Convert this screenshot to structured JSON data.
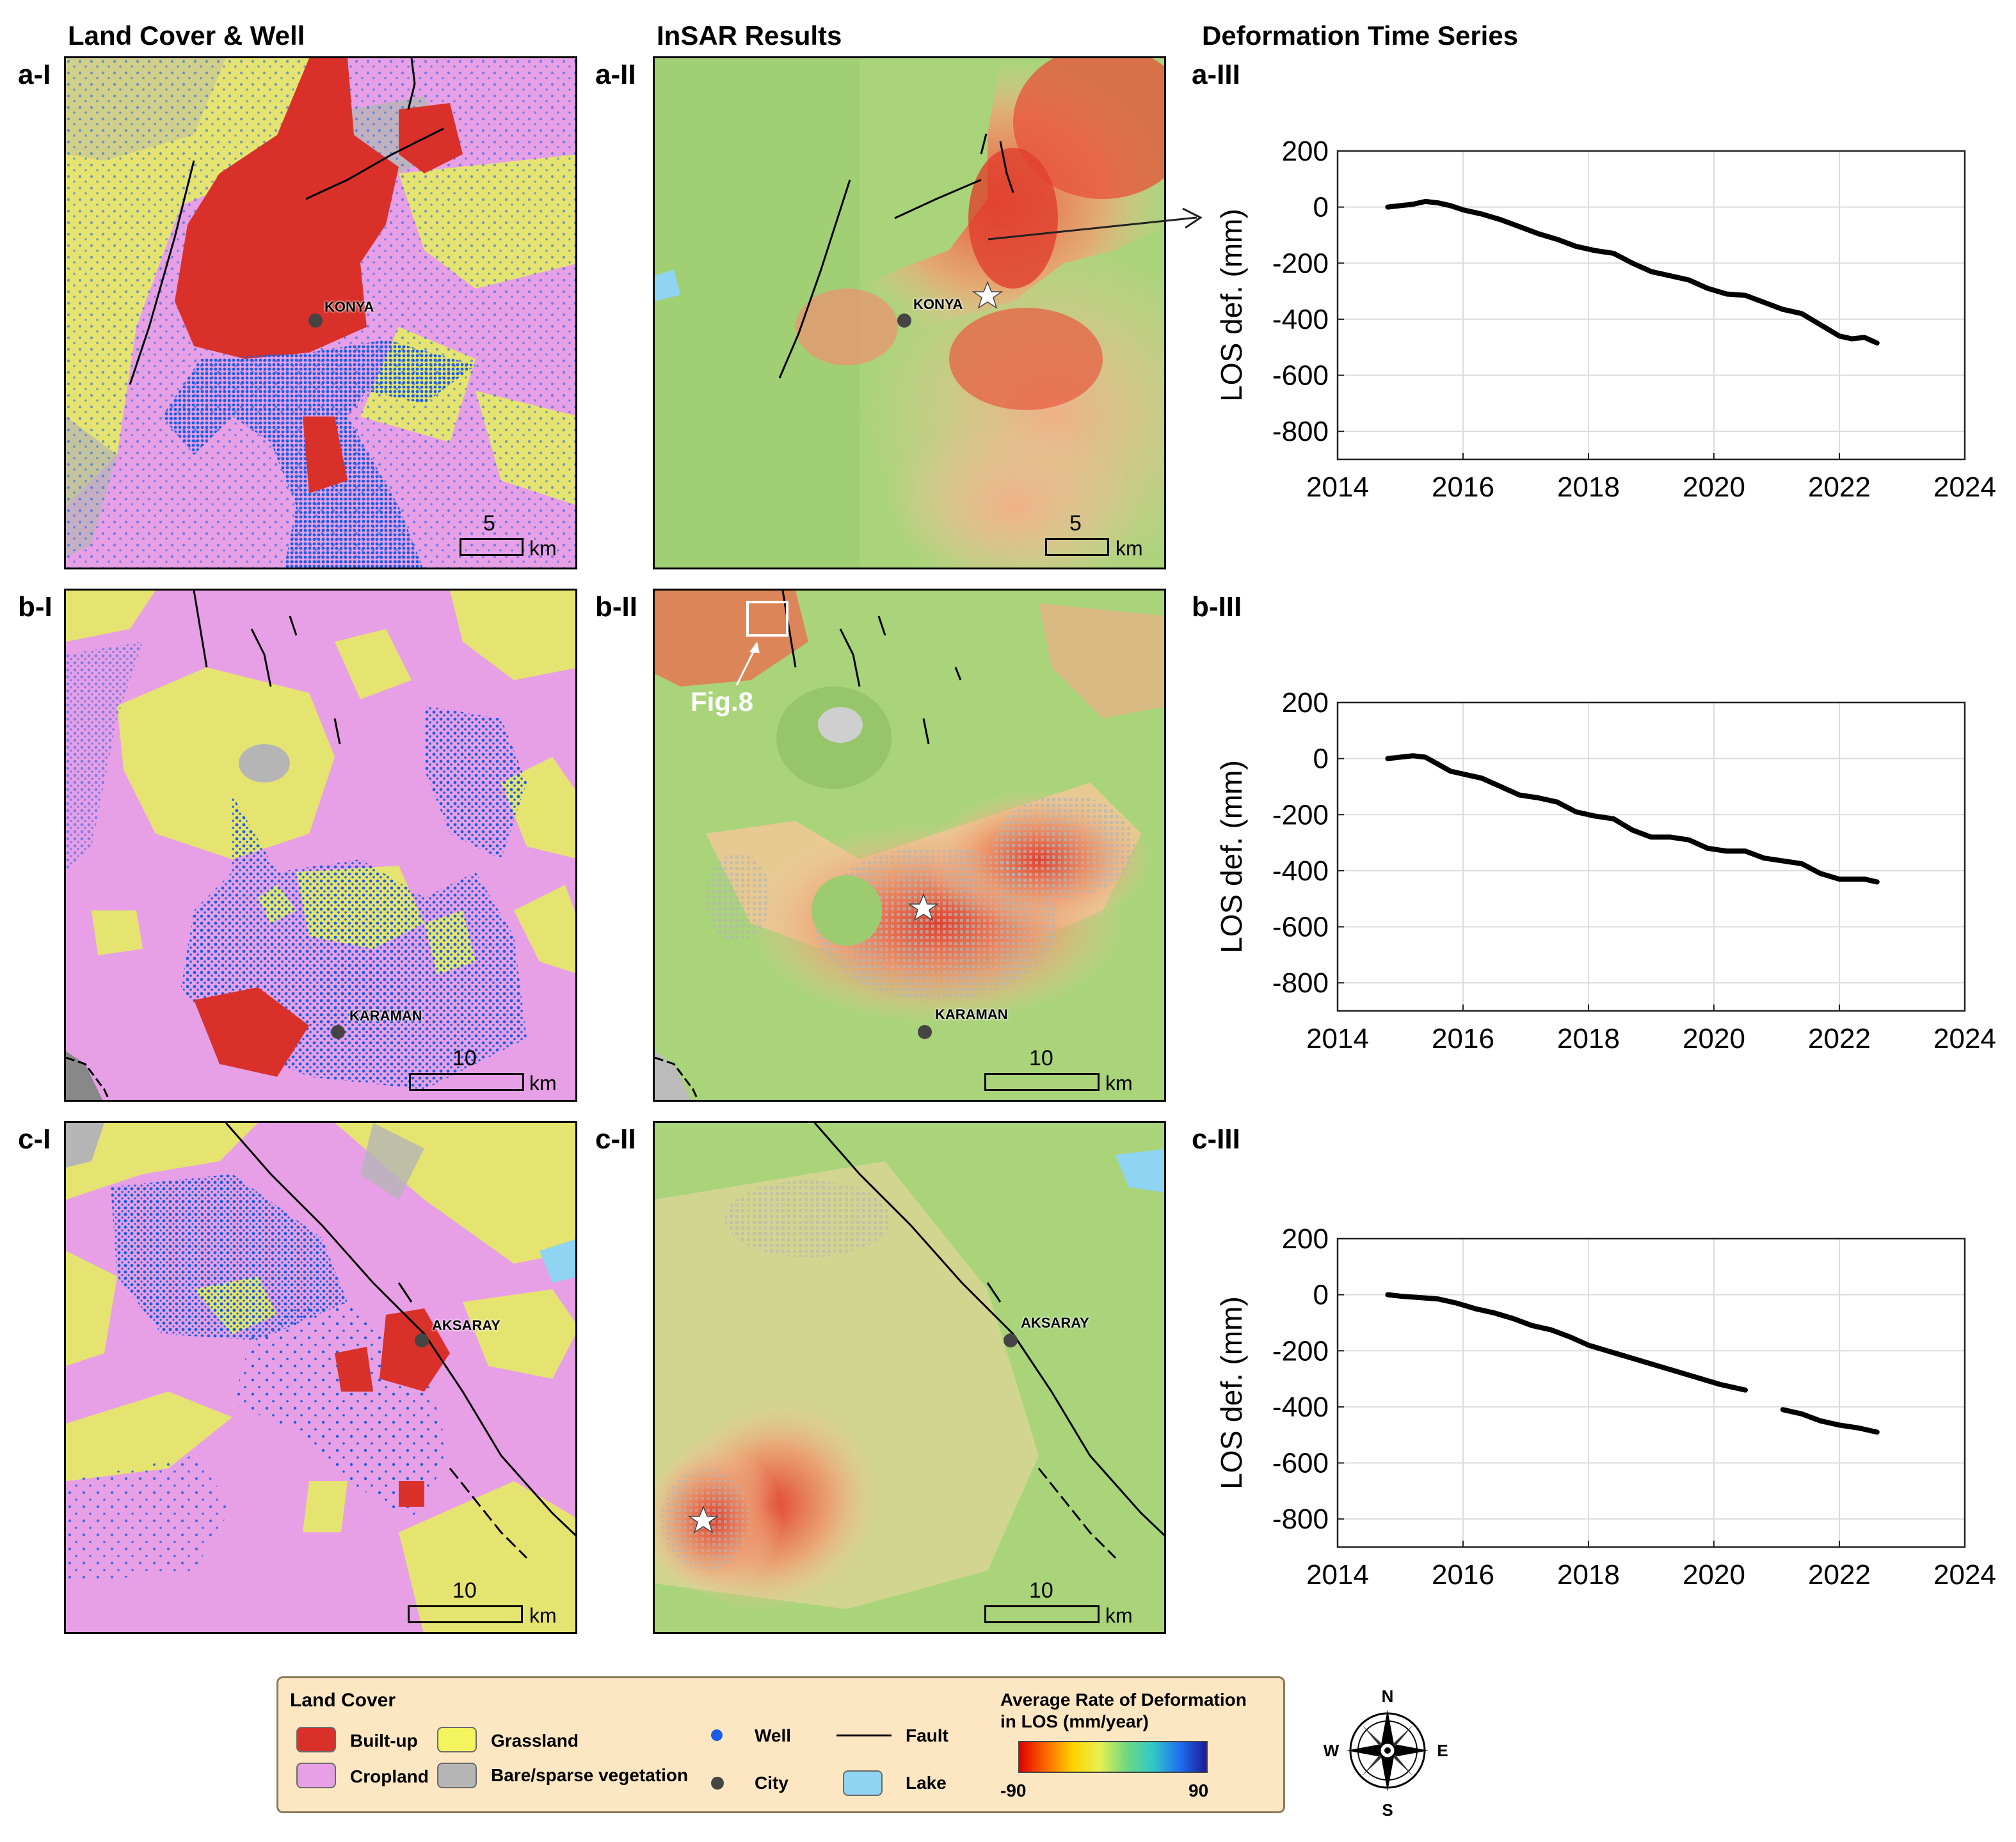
{
  "columns": {
    "landcover": "Land Cover & Well",
    "insar": "InSAR Results",
    "timeseries": "Deformation Time Series"
  },
  "rows": [
    {
      "lc_label": "a-I",
      "insar_label": "a-II",
      "ts_label": "a-III",
      "city": "KONYA",
      "scale_value": "5",
      "scale_unit": "km"
    },
    {
      "lc_label": "b-I",
      "insar_label": "b-II",
      "ts_label": "b-III",
      "city": "KARAMAN",
      "scale_value": "10",
      "scale_unit": "km",
      "annotation": "Fig.8"
    },
    {
      "lc_label": "c-I",
      "insar_label": "c-II",
      "ts_label": "c-III",
      "city": "AKSARAY",
      "scale_value": "10",
      "scale_unit": "km"
    }
  ],
  "chart_data": [
    {
      "type": "line",
      "ylabel": "LOS def. (mm)",
      "xlim": [
        2014,
        2024
      ],
      "ylim": [
        -900,
        200
      ],
      "xticks": [
        2014,
        2016,
        2018,
        2020,
        2022,
        2024
      ],
      "yticks": [
        200,
        0,
        -200,
        -400,
        -600,
        -800
      ],
      "grid": true,
      "series": [
        {
          "x": [
            2014.8,
            2015.0,
            2015.2,
            2015.4,
            2015.6,
            2015.8,
            2016.0,
            2016.3,
            2016.6,
            2016.9,
            2017.2,
            2017.5,
            2017.8,
            2018.1,
            2018.4,
            2018.7,
            2019.0,
            2019.3,
            2019.6,
            2019.9,
            2020.2,
            2020.5,
            2020.8,
            2021.1,
            2021.4,
            2021.7,
            2022.0,
            2022.2,
            2022.4,
            2022.6
          ],
          "y": [
            0,
            5,
            10,
            20,
            15,
            5,
            -10,
            -25,
            -45,
            -70,
            -95,
            -115,
            -140,
            -155,
            -165,
            -200,
            -230,
            -245,
            -260,
            -290,
            -310,
            -315,
            -340,
            -365,
            -380,
            -420,
            -460,
            -470,
            -465,
            -485
          ]
        }
      ]
    },
    {
      "type": "line",
      "ylabel": "LOS def. (mm)",
      "xlim": [
        2014,
        2024
      ],
      "ylim": [
        -900,
        200
      ],
      "xticks": [
        2014,
        2016,
        2018,
        2020,
        2022,
        2024
      ],
      "yticks": [
        200,
        0,
        -200,
        -400,
        -600,
        -800
      ],
      "grid": true,
      "series": [
        {
          "x": [
            2014.8,
            2015.0,
            2015.2,
            2015.4,
            2015.6,
            2015.8,
            2016.0,
            2016.3,
            2016.6,
            2016.9,
            2017.2,
            2017.5,
            2017.8,
            2018.1,
            2018.4,
            2018.7,
            2019.0,
            2019.3,
            2019.6,
            2019.9,
            2020.2,
            2020.5,
            2020.8,
            2021.1,
            2021.4,
            2021.7,
            2022.0,
            2022.2,
            2022.4,
            2022.6
          ],
          "y": [
            0,
            5,
            10,
            5,
            -20,
            -45,
            -55,
            -70,
            -100,
            -130,
            -140,
            -155,
            -190,
            -205,
            -215,
            -255,
            -280,
            -280,
            -290,
            -320,
            -330,
            -330,
            -355,
            -365,
            -375,
            -410,
            -430,
            -430,
            -430,
            -440
          ]
        }
      ]
    },
    {
      "type": "line",
      "ylabel": "LOS def. (mm)",
      "xlim": [
        2014,
        2024
      ],
      "ylim": [
        -900,
        200
      ],
      "xticks": [
        2014,
        2016,
        2018,
        2020,
        2022,
        2024
      ],
      "yticks": [
        200,
        0,
        -200,
        -400,
        -600,
        -800
      ],
      "grid": true,
      "series": [
        {
          "x": [
            2014.8,
            2015.0,
            2015.3,
            2015.6,
            2015.9,
            2016.2,
            2016.5,
            2016.8,
            2017.1,
            2017.4,
            2017.7,
            2018.0,
            2018.3,
            2018.6,
            2018.9,
            2019.2,
            2019.5,
            2019.8,
            2020.1,
            2020.5
          ],
          "y": [
            0,
            -5,
            -10,
            -15,
            -30,
            -50,
            -65,
            -85,
            -110,
            -125,
            -150,
            -180,
            -200,
            -220,
            -240,
            -260,
            -280,
            -300,
            -320,
            -340
          ]
        },
        {
          "x": [
            2021.1,
            2021.4,
            2021.7,
            2022.0,
            2022.3,
            2022.6
          ],
          "y": [
            -410,
            -425,
            -450,
            -465,
            -475,
            -490
          ]
        }
      ]
    }
  ],
  "legend": {
    "title": "Land Cover",
    "built_up": "Built-up",
    "grassland": "Grassland",
    "cropland": "Cropland",
    "bare": "Bare/sparse vegetation",
    "well": "Well",
    "city": "City",
    "fault": "Fault",
    "lake": "Lake",
    "rate_title_1": "Average Rate of Deformation",
    "rate_title_2": "in LOS (mm/year)",
    "rate_min": "-90",
    "rate_max": "90",
    "colors": {
      "built_up": "#d9302a",
      "grassland": "#f4f45e",
      "cropland": "#e7a0e6",
      "bare": "#b5b5b5",
      "well": "#1a5de6",
      "city": "#444444",
      "lake": "#8fd4f2"
    }
  },
  "compass": {
    "n": "N",
    "s": "S",
    "e": "E",
    "w": "W"
  }
}
